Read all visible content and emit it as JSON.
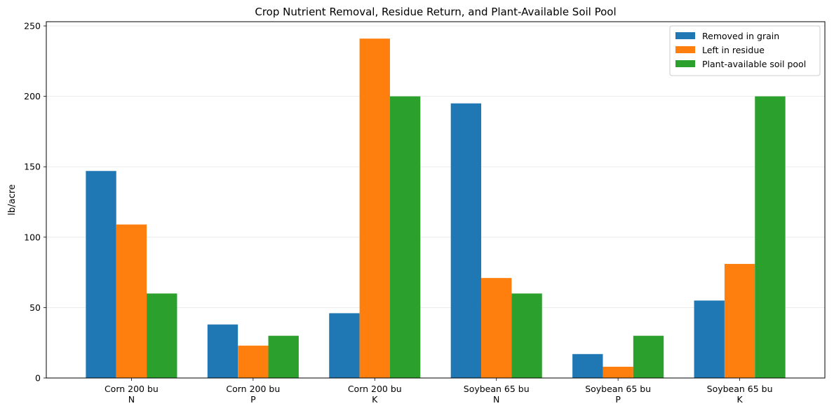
{
  "chart_data": {
    "type": "bar",
    "title": "Crop Nutrient Removal, Residue Return, and Plant-Available Soil Pool",
    "xlabel": "",
    "ylabel": "lb/acre",
    "ylim": [
      0,
      253
    ],
    "yticks": [
      0,
      50,
      100,
      150,
      200,
      250
    ],
    "grid": "y",
    "legend_position": "top-right",
    "categories": [
      [
        "Corn 200 bu",
        "N"
      ],
      [
        "Corn 200 bu",
        "P"
      ],
      [
        "Corn 200 bu",
        "K"
      ],
      [
        "Soybean 65 bu",
        "N"
      ],
      [
        "Soybean 65 bu",
        "P"
      ],
      [
        "Soybean 65 bu",
        "K"
      ]
    ],
    "series": [
      {
        "name": "Removed in grain",
        "color": "#1f77b4",
        "values": [
          147,
          38,
          46,
          195,
          17,
          55
        ]
      },
      {
        "name": "Left in residue",
        "color": "#ff7f0e",
        "values": [
          109,
          23,
          241,
          71,
          8,
          81
        ]
      },
      {
        "name": "Plant-available soil pool",
        "color": "#2ca02c",
        "values": [
          60,
          30,
          200,
          60,
          30,
          200
        ]
      }
    ]
  }
}
